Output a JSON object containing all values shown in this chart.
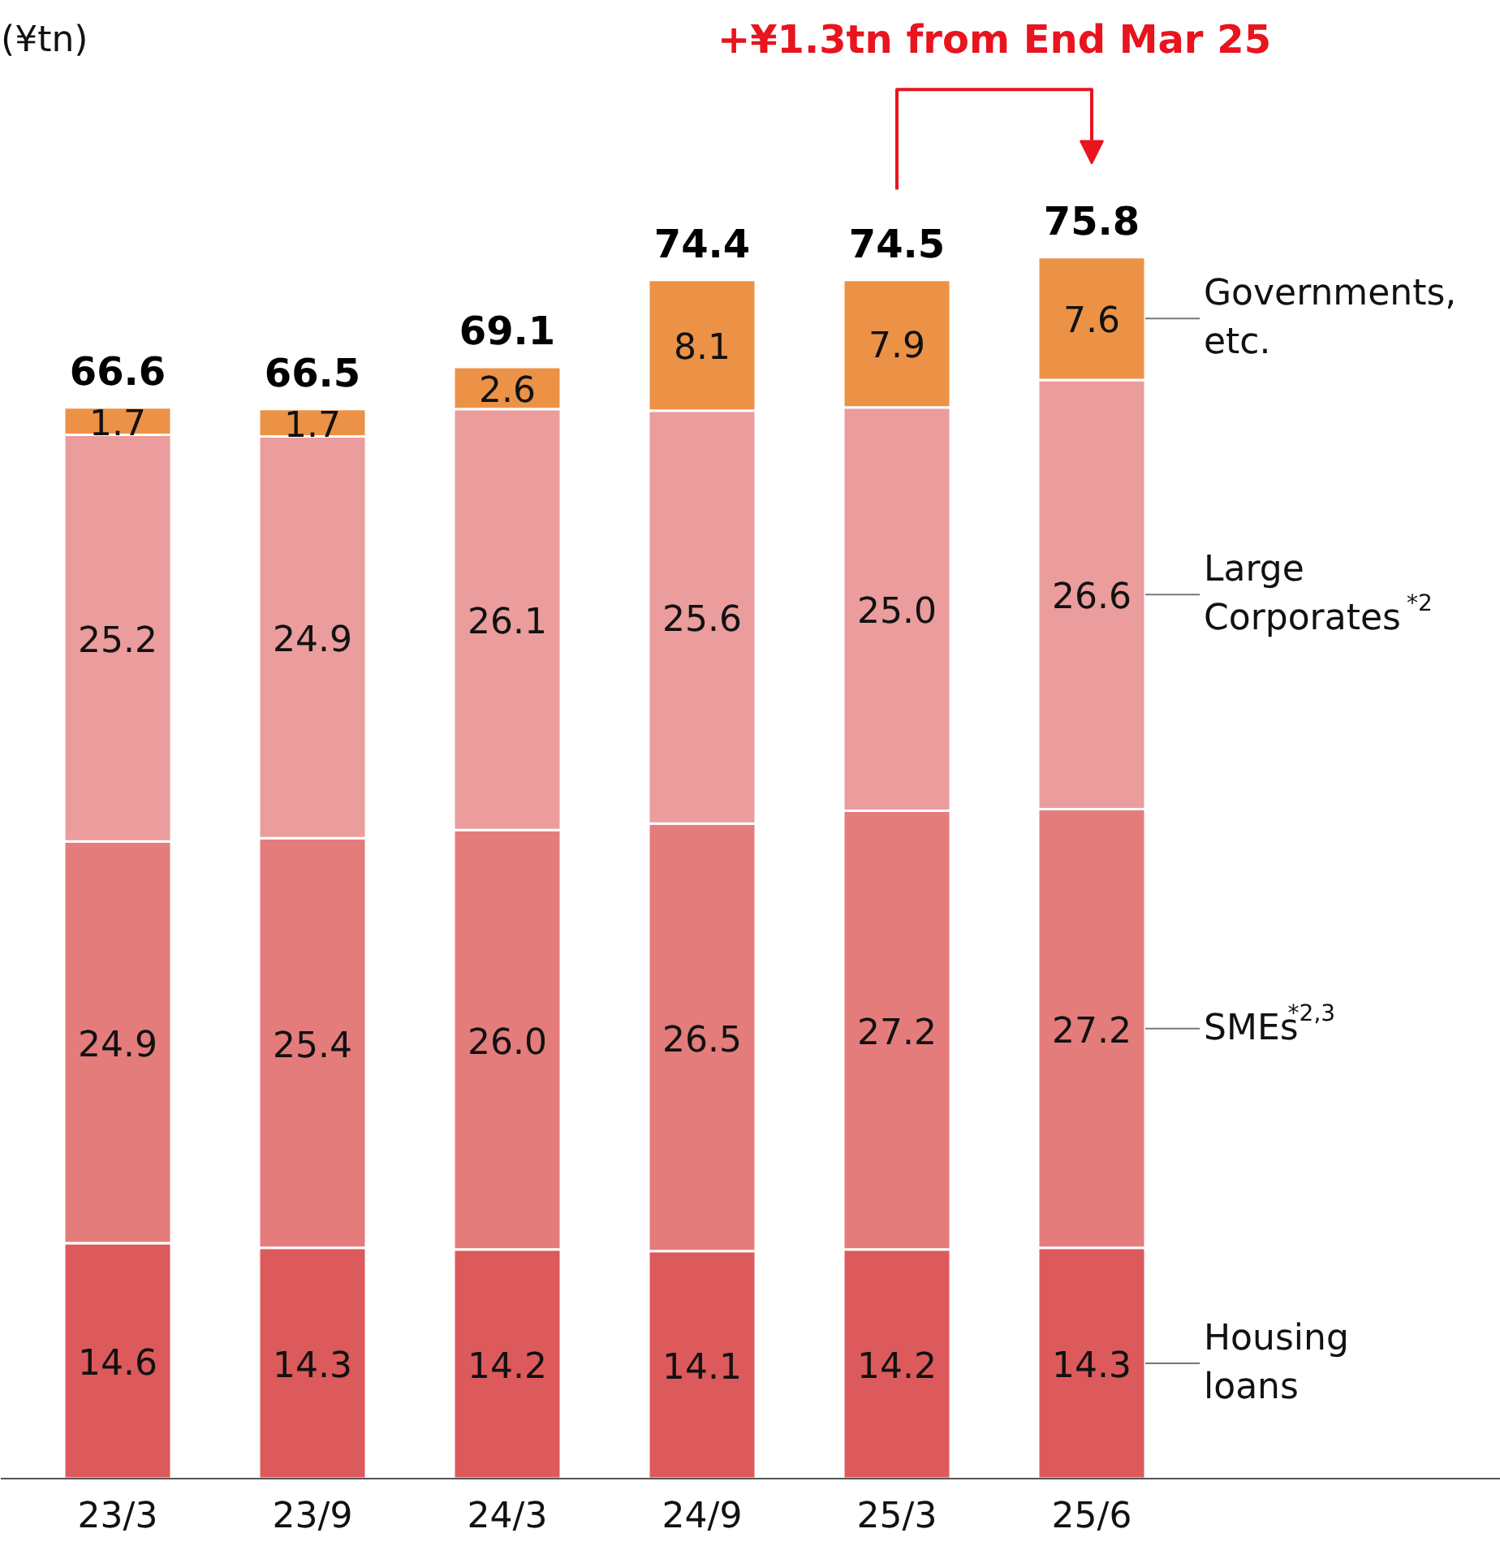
{
  "chart_data": {
    "type": "bar",
    "stacked": true,
    "categories": [
      "23/3",
      "23/9",
      "24/3",
      "24/9",
      "25/3",
      "25/6"
    ],
    "series": [
      {
        "name": "Housing loans",
        "color": "#dc5a5b",
        "values": [
          14.6,
          14.3,
          14.2,
          14.1,
          14.2,
          14.3
        ],
        "value_labels": [
          "14.6",
          "14.3",
          "14.2",
          "14.1",
          "14.2",
          "14.3"
        ]
      },
      {
        "name": "SMEs$^{*2,3}$",
        "color": "#e47c7c",
        "values": [
          24.9,
          25.4,
          26.0,
          26.5,
          27.2,
          27.2
        ],
        "value_labels": [
          "24.9",
          "25.4",
          "26.0",
          "26.5",
          "27.2",
          "27.2"
        ]
      },
      {
        "name": "Large Corporates$^{*2}$",
        "color": "#eb9c9c",
        "values": [
          25.2,
          24.9,
          26.1,
          25.6,
          25.0,
          26.6
        ],
        "value_labels": [
          "25.2",
          "24.9",
          "26.1",
          "25.6",
          "25.0",
          "26.6"
        ]
      },
      {
        "name": "Governments, etc.",
        "color": "#ec9246",
        "values": [
          1.7,
          1.7,
          2.6,
          8.1,
          7.9,
          7.6
        ],
        "value_labels": [
          "1.7",
          "1.7",
          "2.6",
          "8.1",
          "7.9",
          "7.6"
        ]
      }
    ],
    "totals": [
      "66.6",
      "66.5",
      "69.1",
      "74.4",
      "74.5",
      "75.8"
    ],
    "annotations": [
      "(¥tn)",
      "+¥1.3tn from End Mar 25"
    ]
  }
}
